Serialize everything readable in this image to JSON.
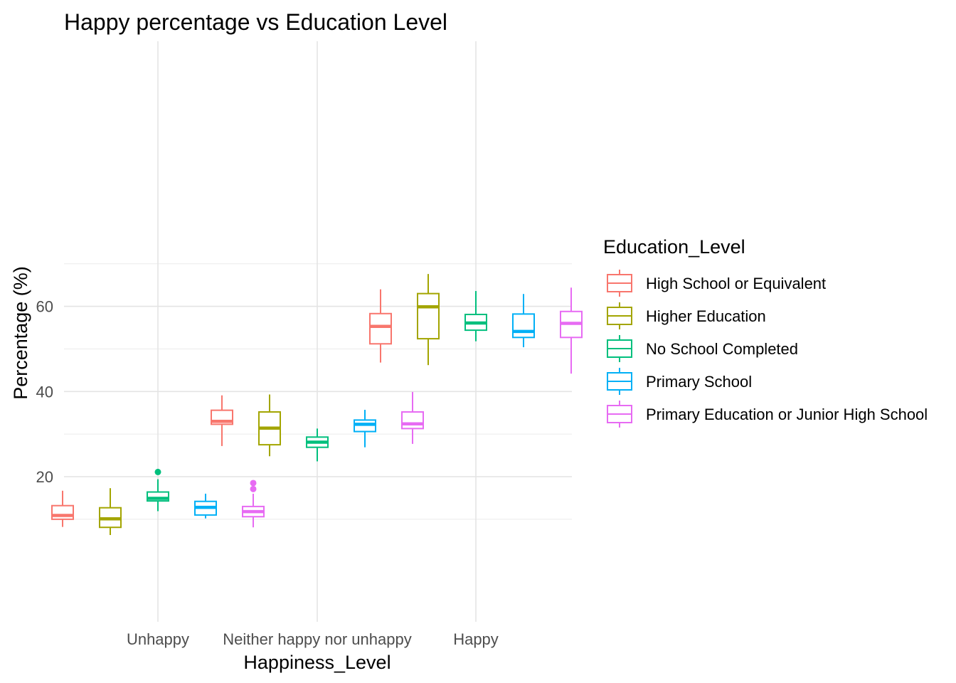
{
  "chart_data": {
    "type": "boxplot",
    "title": "Happy percentage vs Education Level",
    "xlabel": "Happiness_Level",
    "ylabel": "Percentage (%)",
    "categories": [
      "Unhappy",
      "Neither happy nor unhappy",
      "Happy"
    ],
    "y_ticks": [
      20,
      40,
      60
    ],
    "y_range": [
      4.5,
      69
    ],
    "grid": true,
    "legend": {
      "title": "Education_Level",
      "position": "right"
    },
    "series": [
      {
        "name": "High School or Equivalent",
        "color": "#F8766D",
        "boxes": [
          {
            "min": 8.2,
            "q1": 10.0,
            "median": 10.9,
            "q3": 13.2,
            "max": 16.7,
            "outliers": []
          },
          {
            "min": 27.2,
            "q1": 32.3,
            "median": 33.0,
            "q3": 35.6,
            "max": 39.1,
            "outliers": []
          },
          {
            "min": 46.8,
            "q1": 51.2,
            "median": 55.3,
            "q3": 58.3,
            "max": 64.0,
            "outliers": []
          }
        ]
      },
      {
        "name": "Higher Education",
        "color": "#A3A500",
        "boxes": [
          {
            "min": 6.3,
            "q1": 8.1,
            "median": 10.1,
            "q3": 12.7,
            "max": 17.3,
            "outliers": []
          },
          {
            "min": 24.8,
            "q1": 27.5,
            "median": 31.4,
            "q3": 35.2,
            "max": 39.3,
            "outliers": []
          },
          {
            "min": 46.2,
            "q1": 52.4,
            "median": 59.9,
            "q3": 63.0,
            "max": 67.6,
            "outliers": []
          }
        ]
      },
      {
        "name": "No School Completed",
        "color": "#00BF7D",
        "boxes": [
          {
            "min": 11.9,
            "q1": 14.3,
            "median": 14.9,
            "q3": 16.4,
            "max": 19.4,
            "outliers": [
              21.1
            ]
          },
          {
            "min": 23.6,
            "q1": 26.9,
            "median": 28.1,
            "q3": 29.3,
            "max": 31.3,
            "outliers": []
          },
          {
            "min": 51.8,
            "q1": 54.4,
            "median": 56.1,
            "q3": 58.1,
            "max": 63.6,
            "outliers": []
          }
        ]
      },
      {
        "name": "Primary  School",
        "color": "#00B0F6",
        "boxes": [
          {
            "min": 10.2,
            "q1": 11.0,
            "median": 12.8,
            "q3": 14.2,
            "max": 16.0,
            "outliers": []
          },
          {
            "min": 26.9,
            "q1": 30.6,
            "median": 32.3,
            "q3": 33.3,
            "max": 35.7,
            "outliers": []
          },
          {
            "min": 50.4,
            "q1": 52.7,
            "median": 54.1,
            "q3": 58.2,
            "max": 62.9,
            "outliers": []
          }
        ]
      },
      {
        "name": "Primary Education or Junior High School",
        "color": "#E76BF3",
        "boxes": [
          {
            "min": 8.1,
            "q1": 10.6,
            "median": 11.8,
            "q3": 13.0,
            "max": 16.0,
            "outliers": [
              17.1,
              18.5
            ]
          },
          {
            "min": 27.7,
            "q1": 31.3,
            "median": 32.4,
            "q3": 35.2,
            "max": 39.9,
            "outliers": []
          },
          {
            "min": 44.2,
            "q1": 52.7,
            "median": 56.0,
            "q3": 58.8,
            "max": 64.4,
            "outliers": []
          }
        ]
      }
    ]
  }
}
